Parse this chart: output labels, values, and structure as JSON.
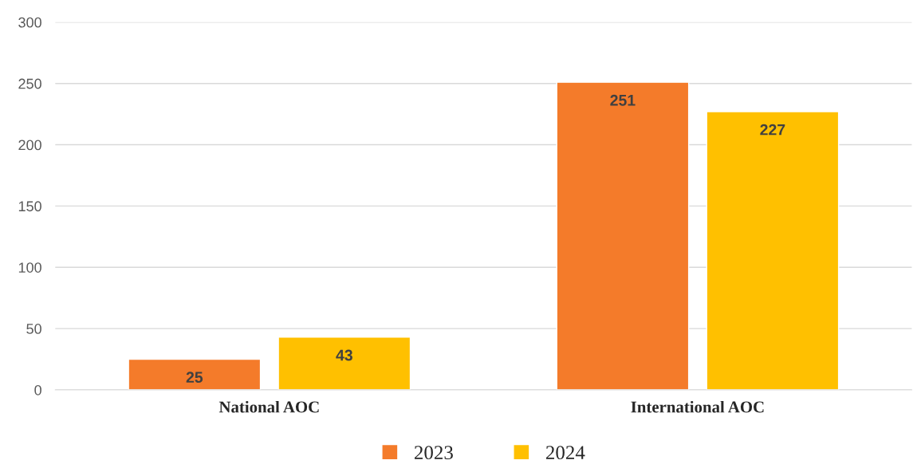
{
  "chart_data": {
    "type": "bar",
    "categories": [
      "National AOC",
      "International AOC"
    ],
    "series": [
      {
        "name": "2023",
        "color": "#f47b2a",
        "values": [
          25,
          251
        ]
      },
      {
        "name": "2024",
        "color": "#ffc000",
        "values": [
          43,
          227
        ]
      }
    ],
    "ylim": [
      0,
      300
    ],
    "yticks": [
      0,
      50,
      100,
      150,
      200,
      250,
      300
    ],
    "grid": "y",
    "legend": "bottom",
    "data_labels": true
  }
}
